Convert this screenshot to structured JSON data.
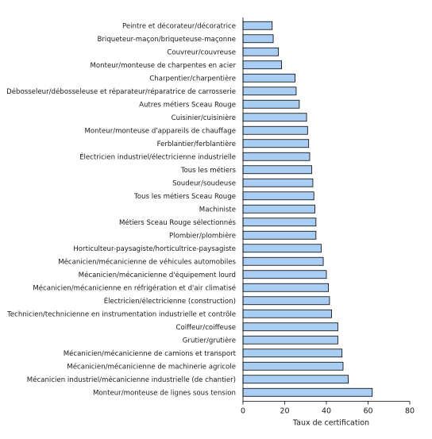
{
  "chart_data": {
    "type": "bar",
    "orientation": "horizontal",
    "title": "",
    "xlabel": "Taux de certification",
    "ylabel": "",
    "xlim": [
      0,
      80
    ],
    "xticks": [
      0,
      20,
      40,
      60,
      80
    ],
    "grid": false,
    "colors": {
      "bar_fill": "#a9cdf3",
      "bar_stroke": "#000000"
    },
    "categories": [
      "Peintre et décorateur/décoratrice",
      "Briqueteur-maçon/briqueteuse-maçonne",
      "Couvreur/couvreuse",
      "Monteur/monteuse de charpentes en acier",
      "Charpentier/charpentière",
      "Débosseleur/débosseleuse et réparateur/réparatrice de carrosserie",
      "Autres métiers Sceau Rouge",
      "Cuisinier/cuisinière",
      "Monteur/monteuse d'appareils de chauffage",
      "Ferblantier/ferblantière",
      "Électricien industriel/électricienne industrielle",
      "Tous les métiers",
      "Soudeur/soudeuse",
      "Tous les métiers Sceau Rouge",
      "Machiniste",
      "Métiers Sceau Rouge sélectionnés",
      "Plombier/plombière",
      "Horticulteur-paysagiste/horticultrice-paysagiste",
      "Mécanicien/mécanicienne de véhicules automobiles",
      "Mécanicien/mécanicienne d'équipement lourd",
      "Mécanicien/mécanicienne en réfrigération et d'air climatisé",
      "Électricien/électricienne (construction)",
      "Technicien/technicienne en instrumentation industrielle et contrôle",
      "Coiffeur/coiffeuse",
      "Grutier/grutière",
      "Mécanicien/mécanicienne de camions et transport",
      "Mécanicien/mécanicienne de machinerie agricole",
      "Mécanicien industriel/mécanicienne industrielle (de chantier)",
      "Monteur/monteuse de lignes sous tension"
    ],
    "values": [
      14,
      14.5,
      17,
      18.5,
      25,
      25.5,
      27,
      30.5,
      31,
      31.5,
      32,
      33,
      33.5,
      34,
      34.5,
      35,
      35,
      37.5,
      38.5,
      40,
      41,
      41.5,
      42.5,
      45.5,
      45.5,
      47.5,
      48,
      50.5,
      62
    ]
  }
}
